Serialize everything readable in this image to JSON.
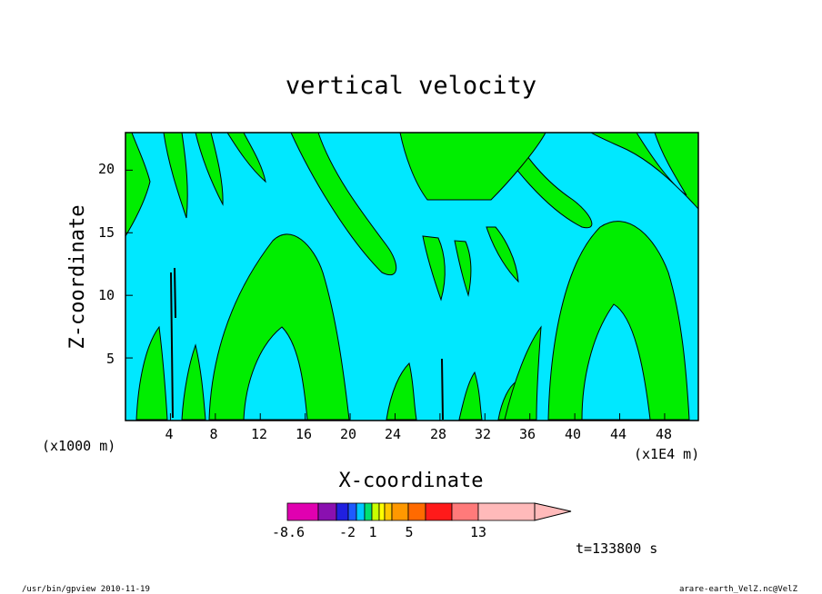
{
  "chart_data": {
    "type": "heatmap",
    "title": "vertical velocity",
    "xlabel": "X-coordinate",
    "ylabel": "Z-coordinate",
    "x_unit_label": "(x1000 m)",
    "x_unit_label_right": "(x1E4 m)",
    "x_ticks": [
      4,
      8,
      12,
      16,
      20,
      24,
      28,
      32,
      36,
      40,
      44,
      48
    ],
    "y_ticks": [
      5,
      10,
      15,
      20
    ],
    "xlim": [
      0,
      51
    ],
    "ylim": [
      0,
      23
    ],
    "colorbar": {
      "labels": [
        "-8.6",
        "-2",
        "1",
        "5",
        "13"
      ],
      "colors": [
        "#e000b0",
        "#8a10b0",
        "#2020e0",
        "#1e5aff",
        "#00c8ff",
        "#00e070",
        "#c8ff00",
        "#ffff00",
        "#ffc800",
        "#ff9800",
        "#ff6a00",
        "#ff1a1a",
        "#ff7a7a",
        "#ffbaba"
      ]
    },
    "fill_colors": {
      "negative": "#00e8ff",
      "positive": "#00ee00"
    },
    "time_label": "t=133800 s"
  },
  "footer": {
    "left": "/usr/bin/gpview   2010-11-19",
    "right": "arare-earth_VelZ.nc@VelZ"
  }
}
